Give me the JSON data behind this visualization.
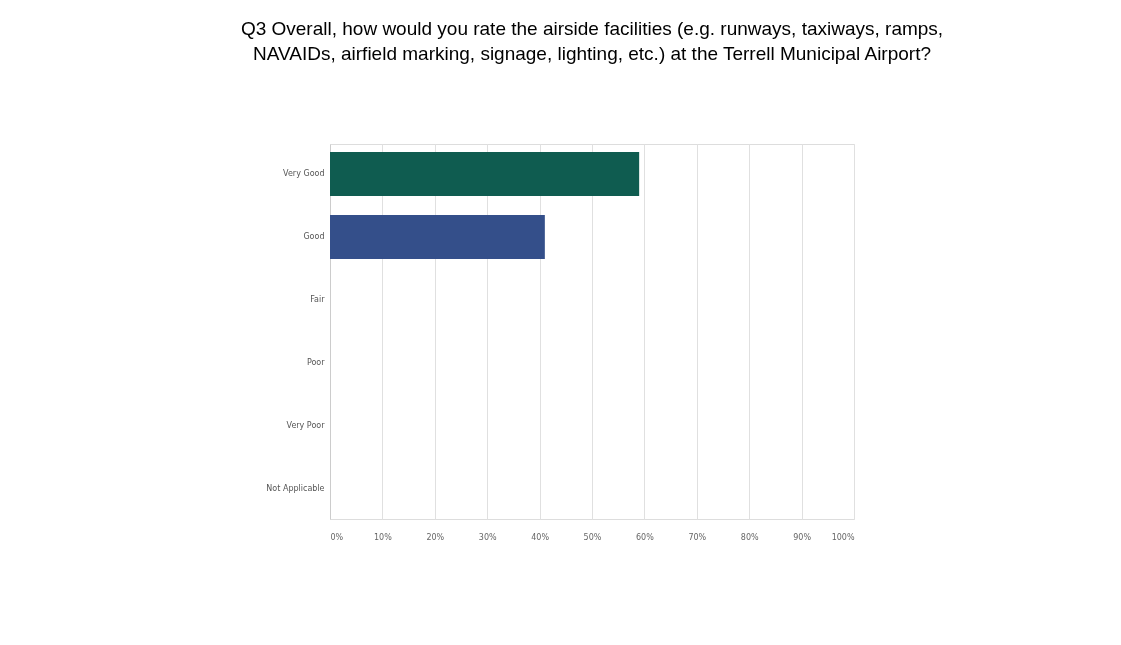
{
  "chart_data": {
    "type": "bar",
    "orientation": "horizontal",
    "title": "Q3 Overall, how would you rate the airside facilities (e.g. runways, taxiways, ramps, NAVAIDs, airfield marking, signage, lighting, etc.) at the Terrell Municipal Airport?",
    "categories": [
      "Very Good",
      "Good",
      "Fair",
      "Poor",
      "Very Poor",
      "Not Applicable"
    ],
    "values": [
      59,
      41,
      0,
      0,
      0,
      0
    ],
    "colors": [
      "#0f5c50",
      "#344f8a",
      "#0f5c50",
      "#0f5c50",
      "#0f5c50",
      "#0f5c50"
    ],
    "xlim": [
      0,
      100
    ],
    "xticks": [
      {
        "value": 0,
        "label": "0%"
      },
      {
        "value": 10,
        "label": "10%"
      },
      {
        "value": 20,
        "label": "20%"
      },
      {
        "value": 30,
        "label": "30%"
      },
      {
        "value": 40,
        "label": "40%"
      },
      {
        "value": 50,
        "label": "50%"
      },
      {
        "value": 60,
        "label": "60%"
      },
      {
        "value": 70,
        "label": "70%"
      },
      {
        "value": 80,
        "label": "80%"
      },
      {
        "value": 90,
        "label": "90%"
      },
      {
        "value": 100,
        "label": "100%"
      }
    ],
    "grid": "x"
  }
}
